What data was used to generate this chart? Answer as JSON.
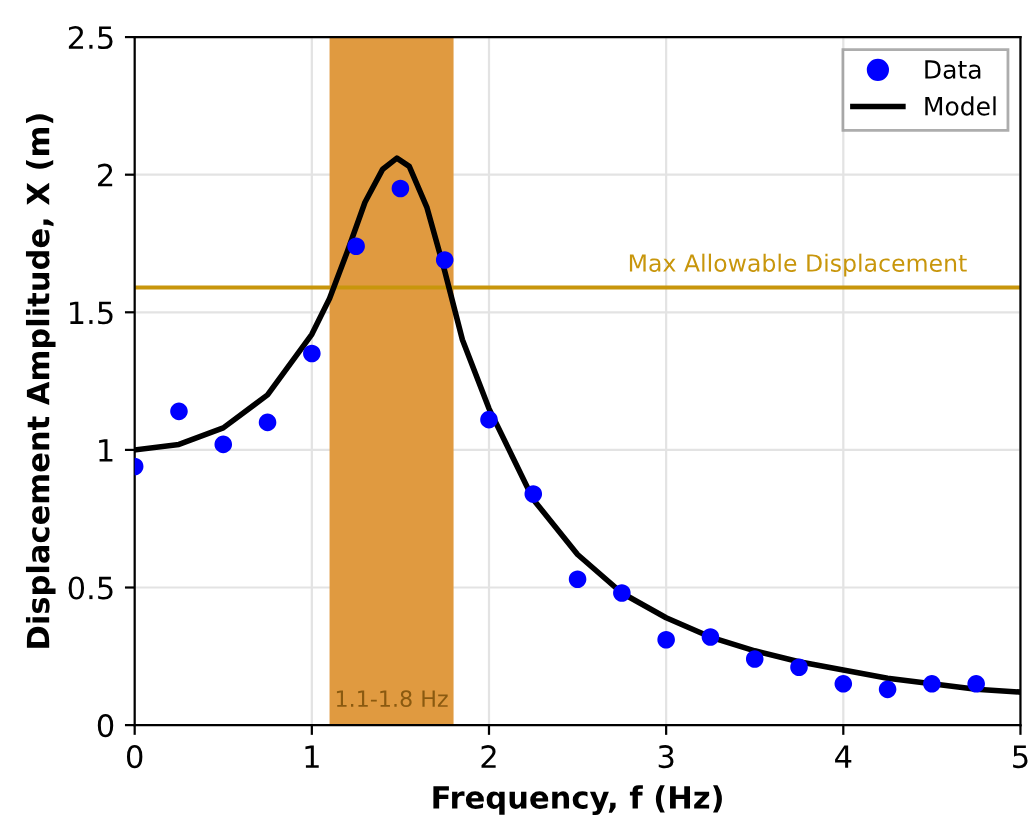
{
  "chart_data": {
    "type": "scatter",
    "xlabel": "Frequency, f (Hz)",
    "ylabel": "Displacement Amplitude, X (m)",
    "series": [
      {
        "name": "Data",
        "color": "#0000ff",
        "marker": "circle",
        "x": [
          0,
          0.25,
          0.5,
          0.75,
          1.0,
          1.25,
          1.5,
          1.75,
          2.0,
          2.25,
          2.5,
          2.75,
          3.0,
          3.25,
          3.5,
          3.75,
          4.0,
          4.25,
          4.5,
          4.75
        ],
        "values": [
          0.94,
          1.14,
          1.02,
          1.1,
          1.35,
          1.74,
          1.95,
          1.69,
          1.11,
          0.84,
          0.53,
          0.48,
          0.31,
          0.32,
          0.24,
          0.21,
          0.15,
          0.13,
          0.15,
          0.15
        ]
      },
      {
        "name": "Model",
        "type": "line",
        "color": "#000000",
        "marker": "none",
        "line_style": "solid",
        "x": [
          0,
          0.25,
          0.5,
          0.75,
          1.0,
          1.1,
          1.2,
          1.3,
          1.4,
          1.48,
          1.55,
          1.65,
          1.75,
          1.85,
          2.0,
          2.25,
          2.5,
          2.75,
          3.0,
          3.25,
          3.5,
          3.75,
          4.0,
          4.25,
          4.5,
          4.75,
          5.0
        ],
        "values": [
          1.0,
          1.02,
          1.08,
          1.2,
          1.42,
          1.55,
          1.72,
          1.9,
          2.02,
          2.06,
          2.03,
          1.88,
          1.65,
          1.4,
          1.15,
          0.82,
          0.62,
          0.48,
          0.39,
          0.32,
          0.27,
          0.23,
          0.2,
          0.17,
          0.15,
          0.13,
          0.12
        ]
      }
    ],
    "xlim": [
      0,
      5
    ],
    "xticks": [
      0,
      1,
      2,
      3,
      4,
      5
    ],
    "ylim": [
      0,
      2.5
    ],
    "yticks": [
      0,
      0.5,
      1,
      1.5,
      2,
      2.5
    ],
    "ref_lines": [
      {
        "axis": "y",
        "value": 1.59,
        "label": "Max Allowable Displacement",
        "color": "#c8960c",
        "line_style": "solid"
      }
    ],
    "bands": [
      {
        "axis": "x",
        "from": 1.1,
        "to": 1.8,
        "label": "1.1-1.8 Hz",
        "color": "#e09a40"
      }
    ],
    "grid": true,
    "legend": "top right"
  }
}
